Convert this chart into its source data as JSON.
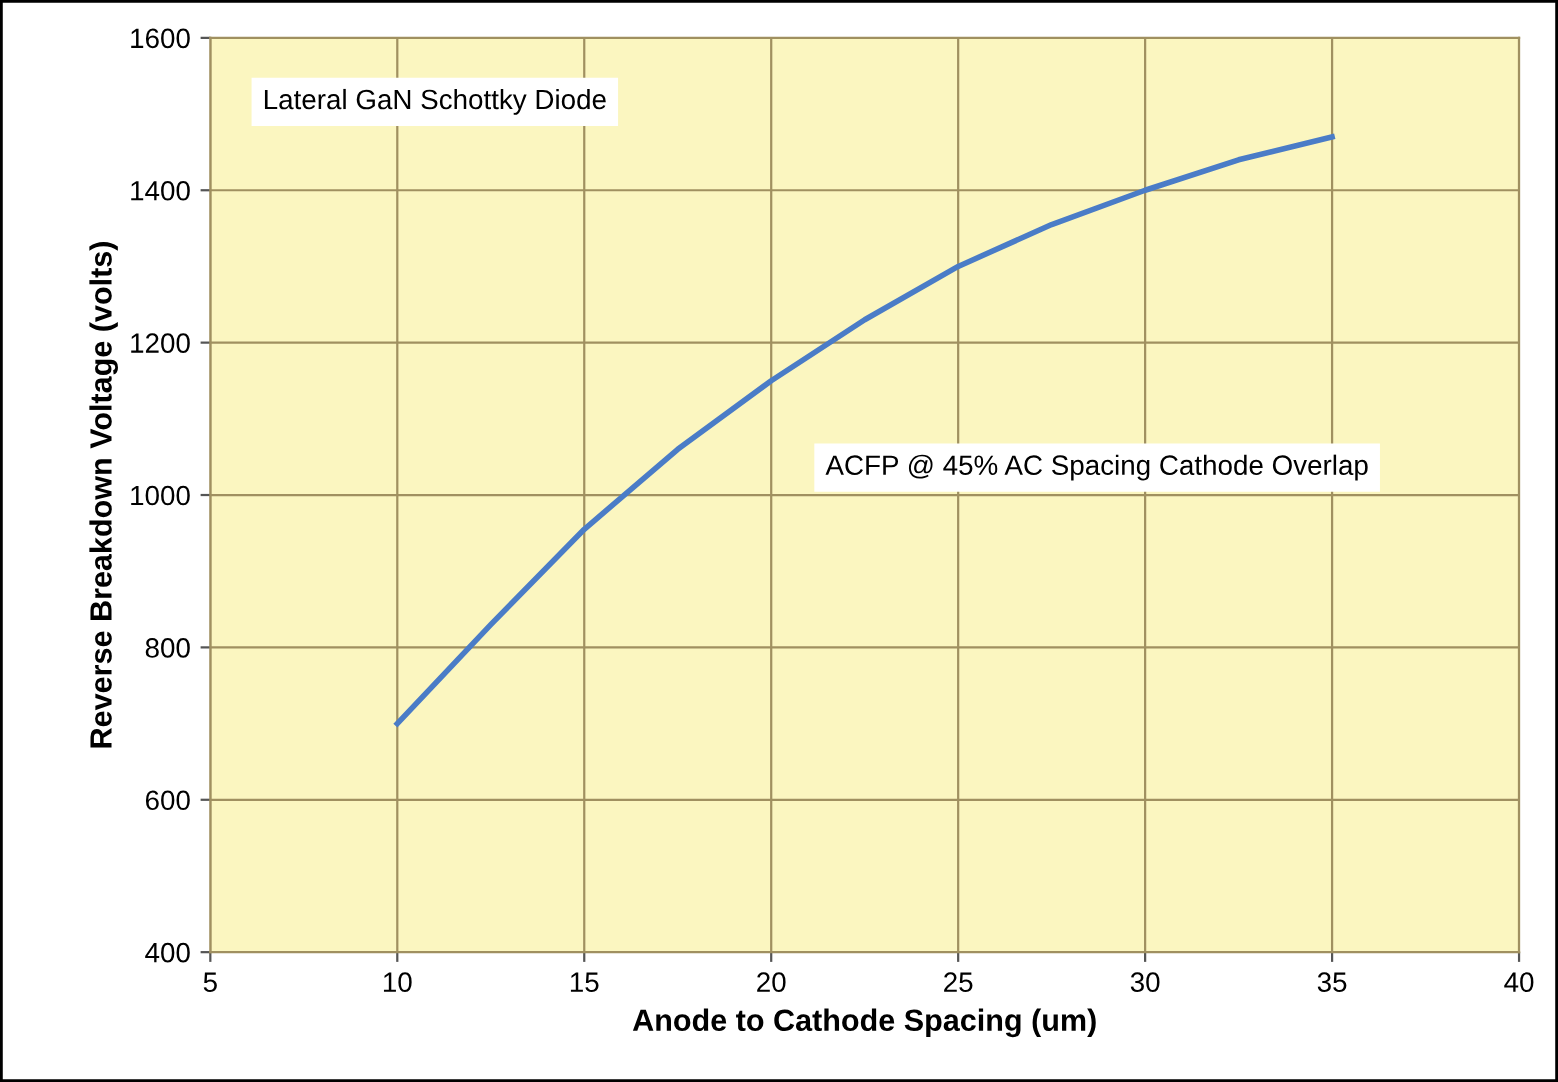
{
  "chart_data": {
    "type": "line",
    "xlabel": "Anode to Cathode Spacing (um)",
    "ylabel": "Reverse Breakdown Voltage (volts)",
    "annotations": [
      "Lateral GaN Schottky Diode",
      "ACFP @ 45% AC Spacing Cathode Overlap"
    ],
    "series": [
      {
        "color": "#4a7cc7",
        "x": [
          10,
          12.5,
          15,
          17.5,
          20,
          22.5,
          25,
          27.5,
          30,
          32.5,
          35
        ],
        "values": [
          700,
          830,
          955,
          1060,
          1150,
          1230,
          1300,
          1355,
          1400,
          1440,
          1470
        ]
      }
    ],
    "xlim": [
      5,
      40
    ],
    "xticks": [
      5,
      10,
      15,
      20,
      25,
      30,
      35,
      40
    ],
    "ylim": [
      400,
      1600
    ],
    "yticks": [
      400,
      600,
      800,
      1000,
      1200,
      1400,
      1600
    ],
    "grid": true,
    "marker": "none",
    "line_style": "solid",
    "legend": false
  }
}
